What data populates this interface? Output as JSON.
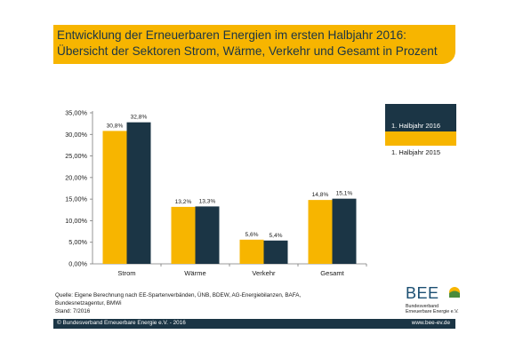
{
  "header": {
    "title_line1": "Entwicklung der Erneuerbaren Energien im ersten Halbjahr 2016:",
    "title_line2": "Übersicht der Sektoren Strom, Wärme, Verkehr und Gesamt in Prozent"
  },
  "colors": {
    "series_2015": "#f7b500",
    "series_2016": "#1b3545",
    "title_bg": "#f7b500",
    "footer_bg": "#1b3545"
  },
  "chart_data": {
    "type": "bar",
    "categories": [
      "Strom",
      "Wärme",
      "Verkehr",
      "Gesamt"
    ],
    "series": [
      {
        "name": "1. Halbjahr 2015",
        "values": [
          30.8,
          13.2,
          5.6,
          14.8
        ],
        "labels": [
          "30,8%",
          "13,2%",
          "5,6%",
          "14,8%"
        ]
      },
      {
        "name": "1. Halbjahr 2016",
        "values": [
          32.8,
          13.3,
          5.4,
          15.1
        ],
        "labels": [
          "32,8%",
          "13,3%",
          "5,4%",
          "15,1%"
        ]
      }
    ],
    "ylim": [
      0,
      35
    ],
    "yticks": [
      0,
      5,
      10,
      15,
      20,
      25,
      30,
      35
    ],
    "ytick_labels": [
      "0,00%",
      "5,00%",
      "10,00%",
      "15,00%",
      "20,00%",
      "25,00%",
      "30,00%",
      "35,00%"
    ],
    "grid": false,
    "legend_placement": "right"
  },
  "legend": {
    "item_2016": "1. Halbjahr 2016",
    "item_2015": "1. Halbjahr 2015"
  },
  "source": {
    "line1": "Quelle: Eigene Berechnung nach EE-Spartenverbänden, ÜNB, BDEW, AG-Energiebilanzen, BAFA,",
    "line2": "Bundesnetzagentur, BMWi",
    "line3": "Stand: 7/2016"
  },
  "logo": {
    "text": "BEE",
    "sub1": "Bundesverband",
    "sub2": "Erneuerbare Energie e.V."
  },
  "footer": {
    "left": "© Bundesverband Erneuerbare Energie e.V. - 2016",
    "right": "www.bee-ev.de"
  }
}
